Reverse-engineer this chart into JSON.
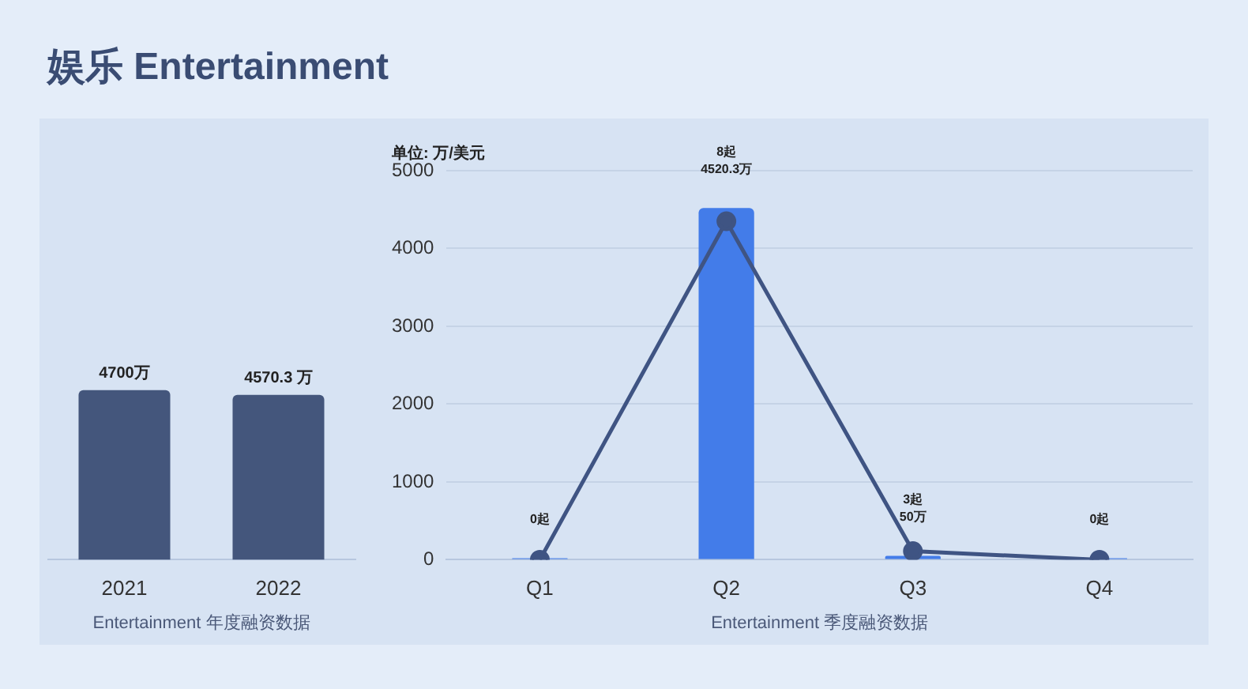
{
  "chart_data": [
    {
      "type": "bar",
      "title": "娱乐 Entertainment",
      "categories": [
        "2021",
        "2022"
      ],
      "xlabel": "Entertainment 年度融资数据",
      "tick_labels": "x",
      "series": [
        {
          "color": "#44567c",
          "values": [
            4700,
            4570.3
          ],
          "value_labels": [
            "4700万",
            "4570.3 万"
          ]
        }
      ]
    },
    {
      "type": "bar",
      "categories": [
        "Q1",
        "Q2",
        "Q3",
        "Q4"
      ],
      "xlabel": "Entertainment 季度融资数据",
      "ylabel": "单位: 万/美元",
      "ylim": [
        0,
        5000
      ],
      "yticks": [
        0,
        1000,
        2000,
        3000,
        4000,
        5000
      ],
      "grid": "y",
      "marker": "circle",
      "series": [
        {
          "color": "#437ce9",
          "values": [
            0,
            4520.3,
            50,
            0
          ],
          "value_labels": [
            "0起",
            "8起\n4520.3万",
            "3起\n50万",
            "0起"
          ]
        },
        {
          "type": "line",
          "color": "#3f5483",
          "values": [
            0,
            4350,
            110,
            0
          ]
        }
      ]
    }
  ]
}
